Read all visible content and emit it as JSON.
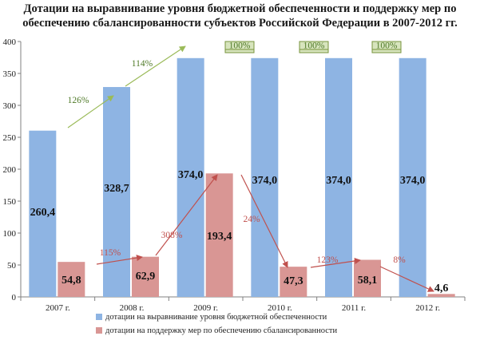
{
  "chart_data": {
    "type": "bar",
    "title_lines": [
      "Дотации на выравнивание уровня бюджетной обеспеченности  и поддержку мер по",
      "обеспечению сбалансированности субъектов Российской Федерации в 2007-2012 гг."
    ],
    "categories": [
      "2007 г.",
      "2008 г.",
      "2009 г.",
      "2010 г.",
      "2011 г.",
      "2012 г."
    ],
    "ylim": [
      0,
      400
    ],
    "yticks": [
      0,
      50,
      100,
      150,
      200,
      250,
      300,
      350,
      400
    ],
    "grid": false,
    "legend_position": "bottom",
    "series": [
      {
        "name": "дотации на выравнивание уровня бюджетной обеспеченности",
        "color": "#8EB4E3",
        "values": [
          260.4,
          328.7,
          374.0,
          374.0,
          374.0,
          374.0
        ],
        "labels": [
          "260,4",
          "328,7",
          "374,0",
          "374,0",
          "374,0",
          "374,0"
        ]
      },
      {
        "name": "дотации на поддержку мер по обеспечению сбалансированности",
        "color": "#D99694",
        "values": [
          54.8,
          62.9,
          193.4,
          47.3,
          58.1,
          4.6
        ],
        "labels": [
          "54,8",
          "62,9",
          "193,4",
          "47,3",
          "58,1",
          "4,6"
        ]
      }
    ],
    "annotations": {
      "series1_growth": [
        {
          "from": 0,
          "to": 1,
          "text": "126%"
        },
        {
          "from": 1,
          "to": 2,
          "text": "114%"
        }
      ],
      "series1_flat": [
        {
          "between": [
            2,
            3
          ],
          "text": "100%"
        },
        {
          "between": [
            3,
            4
          ],
          "text": "100%"
        },
        {
          "between": [
            4,
            5
          ],
          "text": "100%"
        }
      ],
      "series2_growth": [
        {
          "from": 0,
          "to": 1,
          "text": "115%"
        },
        {
          "from": 1,
          "to": 2,
          "text": "308%"
        },
        {
          "from": 2,
          "to": 3,
          "text": "24%"
        },
        {
          "from": 3,
          "to": 4,
          "text": "123%"
        },
        {
          "from": 4,
          "to": 5,
          "text": "8%"
        }
      ]
    }
  }
}
